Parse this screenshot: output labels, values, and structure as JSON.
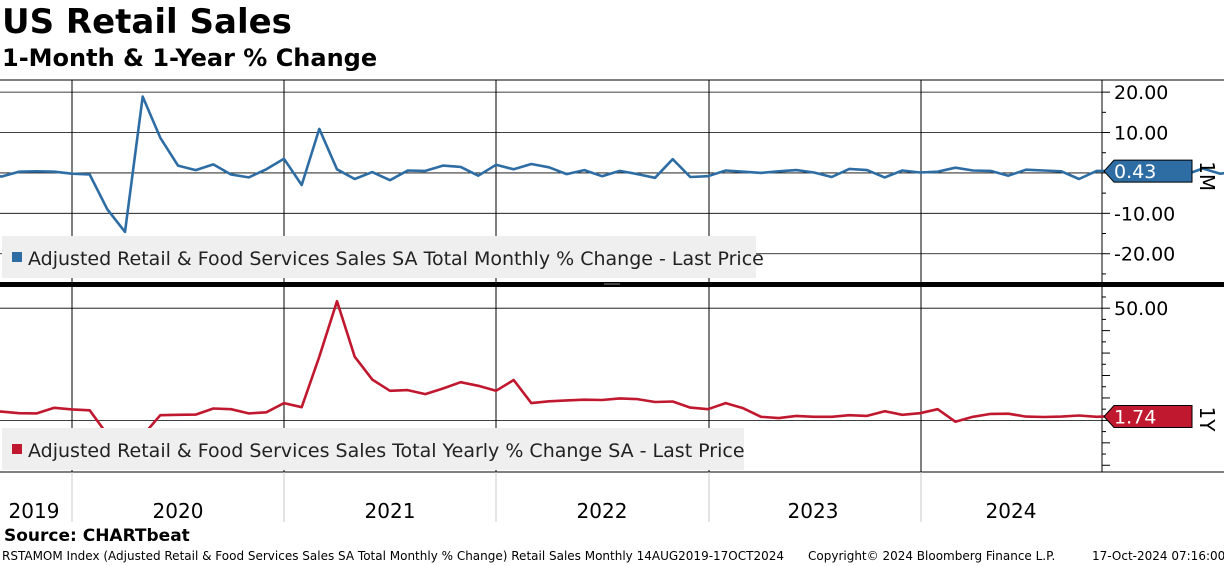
{
  "header": {
    "title": "US Retail Sales",
    "subtitle": "1-Month & 1-Year % Change"
  },
  "source": "Source: CHARTbeat",
  "footer": {
    "left": "RSTAMOM Index (Adjusted Retail & Food Services Sales SA Total Monthly % Change) Retail Sales  Monthly 14AUG2019-17OCT2024",
    "center": "Copyright© 2024 Bloomberg Finance L.P.",
    "right": "17-Oct-2024 07:16:00"
  },
  "colors": {
    "monthly": "#2e6da4",
    "yearly": "#c0182f",
    "legend_bg": "#efefef"
  },
  "chart_data": [
    {
      "type": "line",
      "panel_tag": "1M",
      "x_tick_labels": [
        "2019",
        "2020",
        "2021",
        "2022",
        "2023",
        "2024"
      ],
      "x_start": "2019-08",
      "yticks": [
        "20.00",
        "10.00",
        "-10.00",
        "-20.00"
      ],
      "ylim": [
        -27,
        23
      ],
      "grid": true,
      "legend_position": "bottom-left",
      "last_value_label": "0.43",
      "series": [
        {
          "name": "Adjusted Retail & Food Services Sales SA Total Monthly % Change - Last Price",
          "values": [
            0.5,
            -0.9,
            0.3,
            0.4,
            0.3,
            -0.2,
            -0.4,
            -9.0,
            -14.6,
            18.9,
            8.7,
            1.8,
            0.7,
            2.1,
            -0.4,
            -1.1,
            0.9,
            3.5,
            -3.0,
            10.9,
            0.9,
            -1.5,
            0.2,
            -1.8,
            0.6,
            0.5,
            1.8,
            1.5,
            -0.7,
            2.0,
            0.9,
            2.2,
            1.4,
            -0.3,
            0.7,
            -0.8,
            0.5,
            -0.3,
            -1.2,
            3.4,
            -1.0,
            -0.8,
            0.6,
            0.3,
            0.0,
            0.4,
            0.7,
            0.1,
            -1.0,
            1.0,
            0.7,
            -1.1,
            0.6,
            0.1,
            0.3,
            1.3,
            0.6,
            0.5,
            -0.7,
            0.8,
            0.6,
            0.4,
            -1.5,
            0.5,
            0.5,
            -0.1,
            0.4,
            0.1,
            -0.5,
            1.1,
            -0.2,
            0.43
          ]
        }
      ]
    },
    {
      "type": "line",
      "panel_tag": "1Y",
      "x_tick_labels": [
        "2019",
        "2020",
        "2021",
        "2022",
        "2023",
        "2024"
      ],
      "x_start": "2019-08",
      "yticks": [
        "50.00"
      ],
      "ylim": [
        -23,
        59
      ],
      "grid": true,
      "legend_position": "bottom-left",
      "last_value_label": "1.74",
      "series": [
        {
          "name": "Adjusted Retail & Food Services Sales Total Yearly % Change SA - Last Price",
          "values": [
            4.1,
            3.9,
            3.2,
            3.1,
            5.6,
            4.9,
            4.5,
            -6.3,
            -19.9,
            -6.8,
            2.3,
            2.5,
            2.6,
            5.3,
            5.0,
            3.1,
            3.6,
            7.7,
            5.9,
            28.4,
            53.1,
            28.4,
            18.2,
            13.2,
            13.5,
            11.7,
            14.2,
            17.0,
            15.4,
            13.2,
            18.0,
            7.7,
            8.5,
            8.9,
            9.2,
            9.1,
            9.8,
            9.5,
            8.2,
            8.4,
            5.7,
            5.0,
            7.7,
            5.4,
            1.6,
            1.0,
            2.0,
            1.6,
            1.6,
            2.3,
            2.0,
            4.1,
            2.5,
            3.2,
            5.0,
            -0.6,
            1.6,
            2.9,
            3.0,
            1.7,
            1.5,
            1.7,
            2.2,
            1.6,
            1.9,
            1.74
          ]
        }
      ]
    }
  ]
}
